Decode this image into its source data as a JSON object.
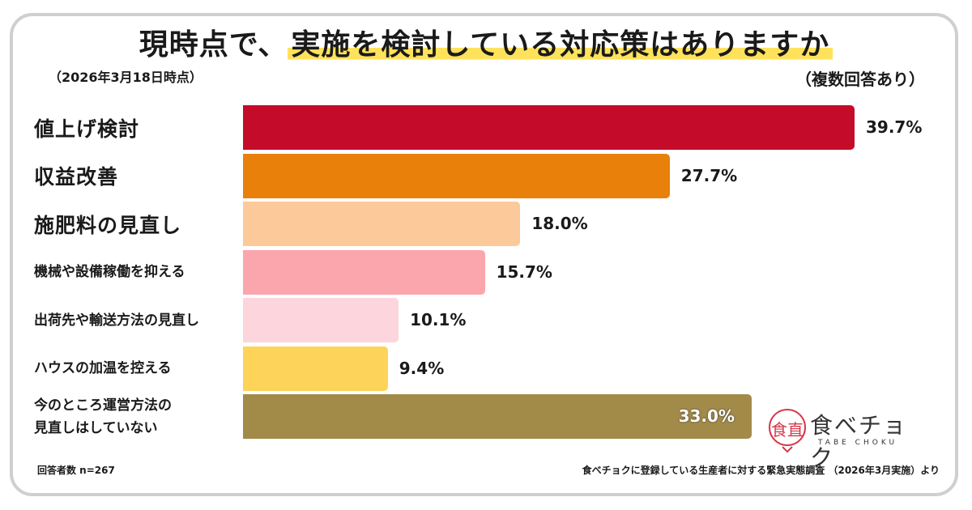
{
  "title": {
    "prefix": "現時点で、",
    "highlight": "実施を検討している対応策はありますか"
  },
  "date_note": "（2026年3月18日時点）",
  "multi_note": "（複数回答あり）",
  "chart_data": {
    "type": "bar",
    "orientation": "horizontal",
    "title": "現時点で、実施を検討している対応策はありますか",
    "unit": "%",
    "xlim": [
      0,
      45
    ],
    "categories": [
      "値上げ検討",
      "収益改善",
      "施肥料の見直し",
      "機械や設備稼働を抑える",
      "出荷先や輸送方法の見直し",
      "ハウスの加温を控える",
      "今のところ運営方法の\n見直しはしていない"
    ],
    "values": [
      39.7,
      27.7,
      18.0,
      15.7,
      10.1,
      9.4,
      33.0
    ],
    "value_labels": [
      "39.7%",
      "27.7%",
      "18.0%",
      "15.7%",
      "10.1%",
      "9.4%",
      "33.0%"
    ],
    "colors": [
      "#c40c2a",
      "#e8800a",
      "#fcca9a",
      "#fba6ad",
      "#fdd5dd",
      "#fdd35a",
      "#a28a48"
    ]
  },
  "footer": {
    "respondents": "回答者数 n=267",
    "source": "食べチョクに登録している生産者に対する緊急実態調査 （2026年3月実施）より"
  },
  "logo": {
    "name": "食べチョク",
    "sub": "TABE CHOKU",
    "mark_text": "食直"
  }
}
